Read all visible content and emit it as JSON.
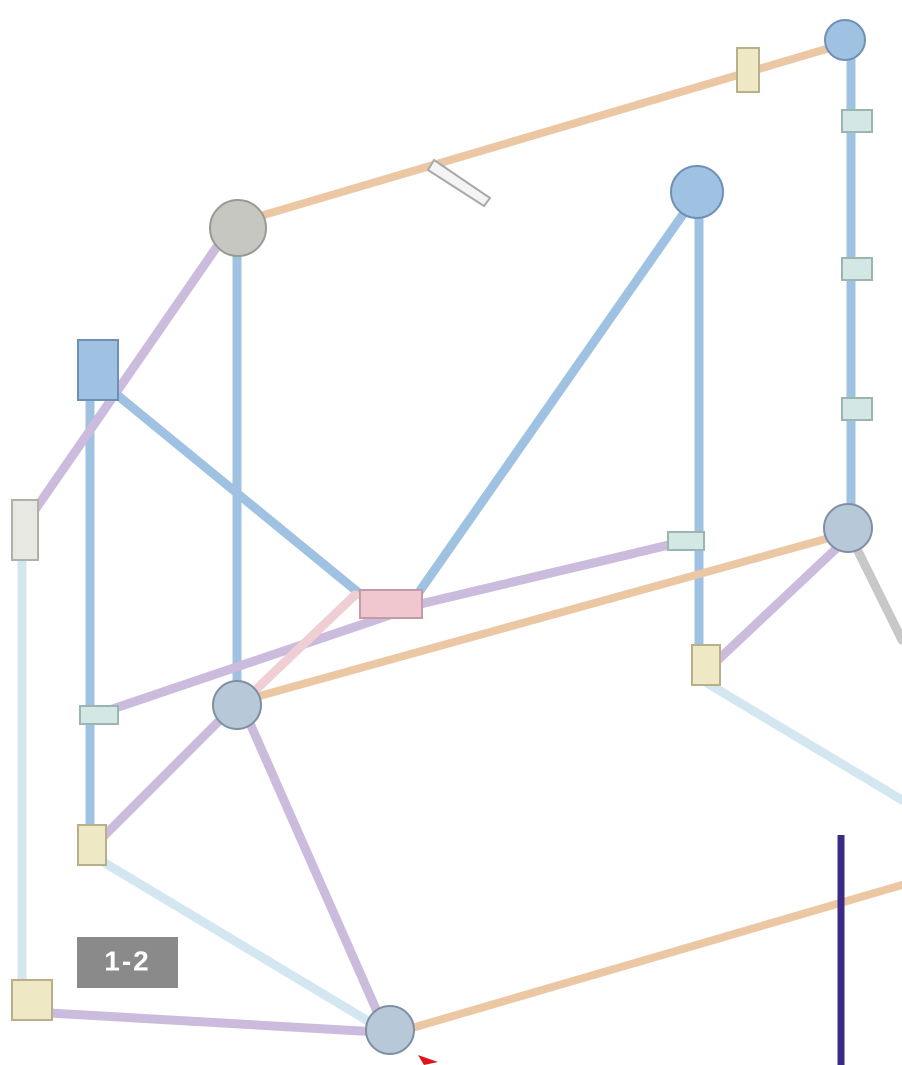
{
  "step_label": "1-2"
}
